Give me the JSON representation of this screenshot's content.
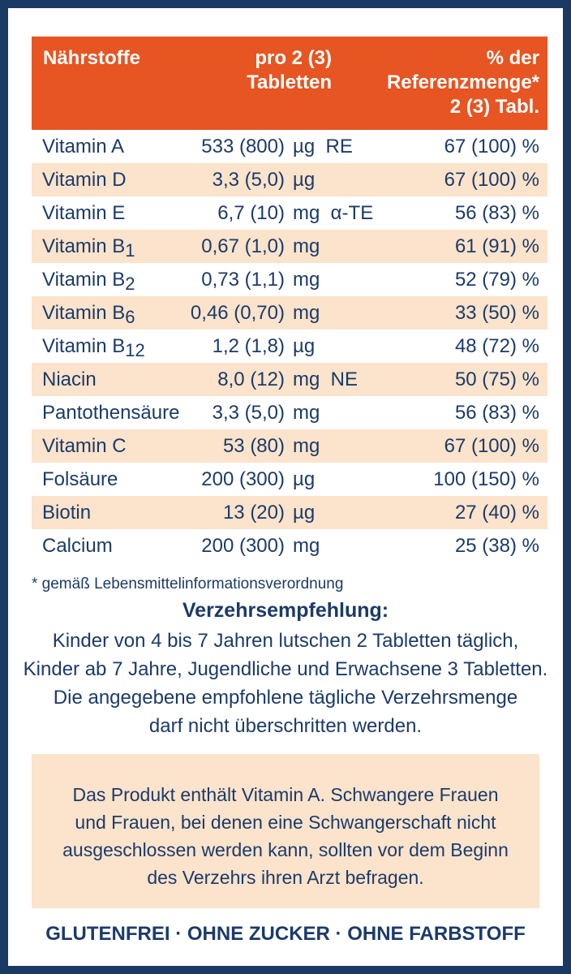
{
  "table": {
    "header": {
      "col_name": "Nährstoffe",
      "col_amount_line1": "pro 2 (3)",
      "col_amount_line2": "Tabletten",
      "col_ref_line1": "% der",
      "col_ref_line2": "Referenzmenge*",
      "col_ref_line3": "2 (3) Tabl."
    },
    "rows": [
      {
        "name": "Vitamin A",
        "sub": "",
        "amount": "533 (800)",
        "unit": "µg  RE",
        "ref": "67 (100) %"
      },
      {
        "name": "Vitamin D",
        "sub": "",
        "amount": "3,3 (5,0)",
        "unit": "µg",
        "ref": "67 (100) %"
      },
      {
        "name": "Vitamin E",
        "sub": "",
        "amount": "6,7 (10)",
        "unit": "mg  α-TE",
        "ref": "56 (83) %"
      },
      {
        "name": "Vitamin B",
        "sub": "1",
        "amount": "0,67 (1,0)",
        "unit": "mg",
        "ref": "61 (91) %"
      },
      {
        "name": "Vitamin B",
        "sub": "2",
        "amount": "0,73 (1,1)",
        "unit": "mg",
        "ref": "52 (79) %"
      },
      {
        "name": "Vitamin B",
        "sub": "6",
        "amount": "0,46 (0,70)",
        "unit": "mg",
        "ref": "33 (50) %"
      },
      {
        "name": "Vitamin B",
        "sub": "12",
        "amount": "1,2 (1,8)",
        "unit": "µg",
        "ref": "48 (72) %"
      },
      {
        "name": "Niacin",
        "sub": "",
        "amount": "8,0 (12)",
        "unit": "mg  NE",
        "ref": "50 (75) %"
      },
      {
        "name": "Pantothensäure",
        "sub": "",
        "amount": "3,3 (5,0)",
        "unit": "mg",
        "ref": "56 (83) %"
      },
      {
        "name": "Vitamin C",
        "sub": "",
        "amount": "53 (80)",
        "unit": "mg",
        "ref": "67 (100) %"
      },
      {
        "name": "Folsäure",
        "sub": "",
        "amount": "200 (300)",
        "unit": "µg",
        "ref": "100 (150) %"
      },
      {
        "name": "Biotin",
        "sub": "",
        "amount": "13 (20)",
        "unit": "µg",
        "ref": "27 (40) %"
      },
      {
        "name": "Calcium",
        "sub": "",
        "amount": "200 (300)",
        "unit": "mg",
        "ref": "25 (38) %"
      }
    ]
  },
  "footnote": "* gemäß Lebensmittelinformationsverordnung",
  "recommendation": {
    "title": "Verzehrsempfehlung:",
    "lines": [
      "Kinder von 4 bis 7 Jahren lutschen 2 Tabletten täglich,",
      "Kinder ab 7 Jahre, Jugendliche und Erwachsene 3 Tabletten.",
      "Die angegebene empfohlene tägliche Verzehrsmenge",
      "darf nicht überschritten werden."
    ]
  },
  "warning": {
    "lines": [
      "Das Produkt enthält Vitamin A. Schwangere Frauen",
      "und Frauen, bei denen eine Schwangerschaft nicht",
      "ausgeschlossen werden kann, sollten vor dem Beginn",
      "des Verzehrs ihren Arzt befragen."
    ]
  },
  "claims": "GLUTENFREI · OHNE ZUCKER · OHNE FARBSTOFF",
  "colors": {
    "header_orange": "#e65522",
    "row_alt": "#fbe3cc",
    "text_navy": "#1b3b68",
    "border_navy": "#1a3a64"
  }
}
